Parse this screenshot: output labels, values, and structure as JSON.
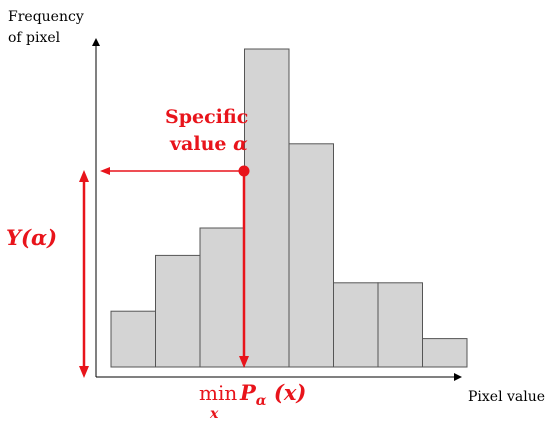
{
  "axes": {
    "y_label_line1": "Frequency",
    "y_label_line2": "of pixel",
    "x_label": "Pixel value"
  },
  "histogram": {
    "bins": 8,
    "frequencies": [
      53,
      106,
      132,
      302,
      212,
      80,
      80,
      27
    ]
  },
  "annotation": {
    "specific_line1": "Specific",
    "specific_line2_text": "value ",
    "specific_line2_symbol": "α",
    "y_alpha_prefix": "Y(",
    "y_alpha_symbol": "α",
    "y_alpha_suffix": ")",
    "min_text": "min",
    "min_sub": "x",
    "p_text": "P",
    "p_sub": "α",
    "p_arg": " (x)"
  },
  "colors": {
    "accent": "#e8141b",
    "bar_fill": "#d4d4d4",
    "bar_stroke": "#555555",
    "axis": "#000000"
  }
}
